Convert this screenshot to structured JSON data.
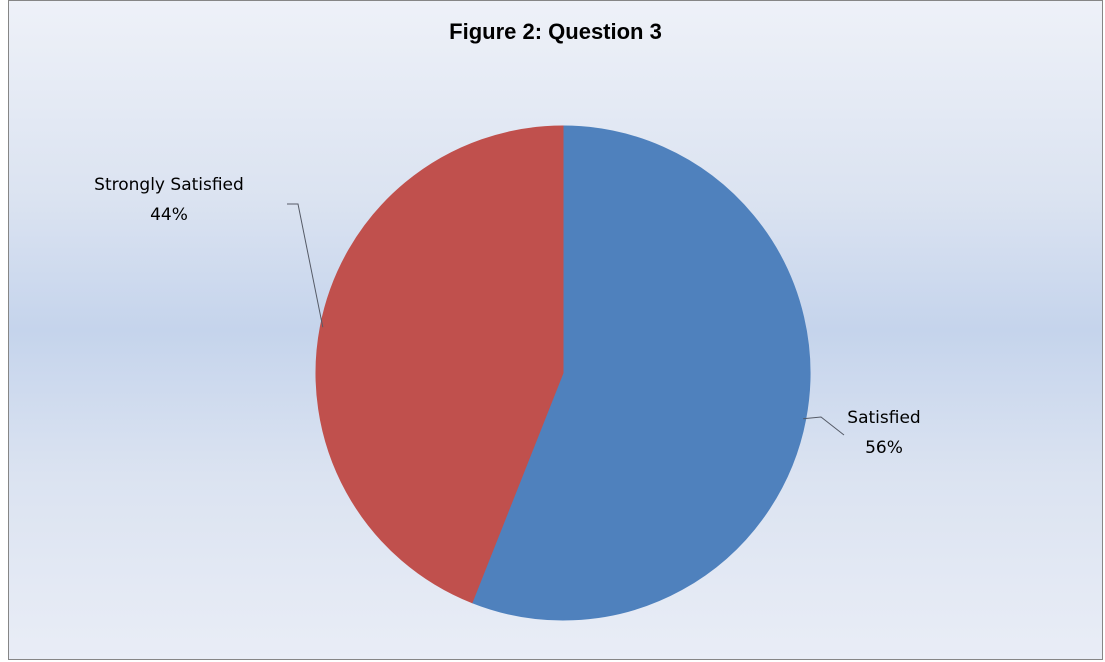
{
  "chart_data": {
    "type": "pie",
    "title": "Figure 2: Question 3",
    "slices": [
      {
        "label": "Satisfied",
        "value": 56,
        "percent_label": "56%",
        "color": "#4f81bd"
      },
      {
        "label": "Strongly Satisfied",
        "value": 44,
        "percent_label": "44%",
        "color": "#c0504d"
      }
    ],
    "start_angle": "12 o'clock",
    "direction": "clockwise",
    "legend": "none",
    "data_labels": "outside with leader lines"
  }
}
